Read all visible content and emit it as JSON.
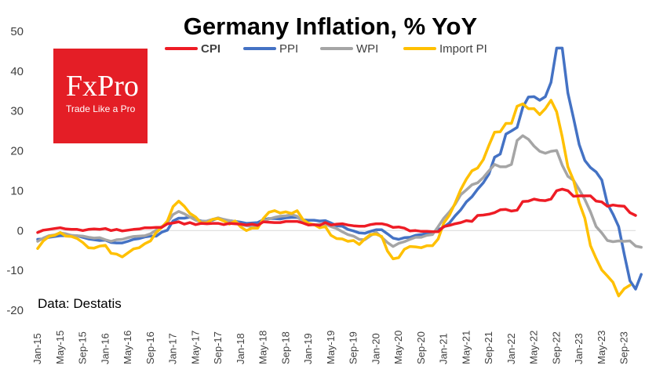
{
  "logo": {
    "brand": "FxPro",
    "tagline": "Trade Like a Pro",
    "color": "#e41e26"
  },
  "source_note": "Data: Destatis",
  "chart_data": {
    "type": "line",
    "title": "Germany Inflation, % YoY",
    "xlabel": "",
    "ylabel": "",
    "ylim": [
      -20,
      50
    ],
    "yticks": [
      -20,
      -10,
      0,
      10,
      20,
      30,
      40,
      50
    ],
    "grid": false,
    "legend_position": "top-center",
    "x_tick_labels": [
      "Jan-15",
      "May-15",
      "Sep-15",
      "Jan-16",
      "May-16",
      "Sep-16",
      "Jan-17",
      "May-17",
      "Sep-17",
      "Jan-18",
      "May-18",
      "Sep-18",
      "Jan-19",
      "May-19",
      "Sep-19",
      "Jan-20",
      "May-20",
      "Sep-20",
      "Jan-21",
      "May-21",
      "Sep-21",
      "Jan-22",
      "May-22",
      "Sep-22",
      "Jan-23",
      "May-23",
      "Sep-23"
    ],
    "series": [
      {
        "name": "CPI",
        "color": "#ee1c25",
        "values": [
          -0.5,
          0.1,
          0.3,
          0.5,
          0.7,
          0.4,
          0.3,
          0.3,
          0.0,
          0.3,
          0.4,
          0.3,
          0.5,
          0.0,
          0.3,
          -0.1,
          0.1,
          0.3,
          0.4,
          0.7,
          0.7,
          0.8,
          0.8,
          1.7,
          1.9,
          2.2,
          1.6,
          2.0,
          1.5,
          1.8,
          1.7,
          1.8,
          1.8,
          1.5,
          1.8,
          1.7,
          1.6,
          1.4,
          1.6,
          1.3,
          2.2,
          2.1,
          2.0,
          2.0,
          2.3,
          2.3,
          2.3,
          1.9,
          1.4,
          1.5,
          1.3,
          2.0,
          1.4,
          1.6,
          1.7,
          1.4,
          1.2,
          1.1,
          1.1,
          1.5,
          1.7,
          1.7,
          1.4,
          0.8,
          0.9,
          0.6,
          -0.1,
          0.0,
          -0.2,
          -0.2,
          -0.3,
          -0.3,
          1.0,
          1.3,
          1.7,
          2.0,
          2.5,
          2.3,
          3.8,
          3.9,
          4.1,
          4.5,
          5.2,
          5.3,
          4.9,
          5.1,
          7.3,
          7.4,
          7.9,
          7.6,
          7.5,
          7.9,
          10.0,
          10.4,
          10.0,
          8.6,
          8.7,
          8.7,
          8.7,
          7.4,
          7.2,
          6.1,
          6.4,
          6.2,
          6.1,
          4.5,
          3.8
        ],
        "note": "monthly Jan-15 to Oct-23"
      },
      {
        "name": "PPI",
        "color": "#4472c4",
        "values": [
          -2.2,
          -2.1,
          -1.7,
          -1.5,
          -1.3,
          -1.3,
          -1.4,
          -1.3,
          -1.7,
          -2.1,
          -2.3,
          -2.5,
          -2.4,
          -3.0,
          -3.1,
          -3.1,
          -2.7,
          -2.2,
          -2.0,
          -1.6,
          -1.4,
          -1.4,
          -0.4,
          0.1,
          2.4,
          3.1,
          3.1,
          3.4,
          2.8,
          2.4,
          2.3,
          2.6,
          3.1,
          2.7,
          2.5,
          2.3,
          2.1,
          1.8,
          1.9,
          2.0,
          2.7,
          3.0,
          3.0,
          2.9,
          3.2,
          3.3,
          3.3,
          2.7,
          2.6,
          2.6,
          2.4,
          2.5,
          1.9,
          1.2,
          1.1,
          0.3,
          -0.1,
          -0.6,
          -0.7,
          -0.2,
          0.2,
          0.2,
          -0.8,
          -1.9,
          -2.2,
          -1.8,
          -1.7,
          -1.2,
          -1.0,
          -0.7,
          -0.5,
          0.2,
          0.9,
          1.9,
          3.7,
          5.2,
          7.2,
          8.5,
          10.4,
          12.0,
          14.2,
          18.4,
          19.2,
          24.2,
          25.0,
          25.9,
          30.9,
          33.5,
          33.6,
          32.7,
          33.6,
          37.2,
          45.8,
          45.8,
          34.5,
          28.2,
          21.6,
          17.6,
          15.8,
          14.7,
          12.7,
          6.7,
          4.1,
          1.0,
          -6.0,
          -12.6,
          -14.7,
          -11.0
        ]
      },
      {
        "name": "WPI",
        "color": "#a5a5a5",
        "values": [
          -2.7,
          -1.9,
          -1.3,
          -1.1,
          -0.6,
          -0.8,
          -1.2,
          -1.3,
          -1.4,
          -1.7,
          -1.9,
          -1.8,
          -2.3,
          -2.7,
          -2.3,
          -2.2,
          -1.8,
          -1.5,
          -1.4,
          -1.3,
          -0.8,
          0.1,
          1.0,
          2.0,
          4.0,
          4.8,
          4.2,
          3.4,
          2.6,
          2.3,
          2.4,
          2.8,
          3.2,
          2.8,
          2.5,
          2.3,
          1.5,
          1.2,
          1.0,
          1.2,
          2.4,
          2.9,
          3.3,
          3.6,
          3.7,
          4.0,
          3.6,
          2.0,
          1.8,
          1.4,
          1.6,
          1.6,
          1.0,
          0.5,
          -0.3,
          -1.0,
          -1.4,
          -2.2,
          -2.3,
          -1.3,
          -0.4,
          -1.7,
          -3.0,
          -4.0,
          -3.2,
          -2.8,
          -2.2,
          -1.7,
          -1.7,
          -1.2,
          -1.0,
          1.0,
          3.1,
          4.7,
          6.6,
          9.0,
          10.2,
          11.5,
          12.0,
          13.3,
          15.0,
          16.6,
          16.0,
          16.0,
          16.6,
          22.6,
          23.8,
          22.9,
          21.2,
          19.9,
          19.4,
          19.9,
          20.1,
          16.4,
          13.6,
          12.6,
          10.3,
          7.8,
          4.7,
          1.0,
          -0.6,
          -2.5,
          -2.8,
          -2.6,
          -2.7,
          -2.6,
          -3.9,
          -4.2
        ]
      },
      {
        "name": "Import PI",
        "color": "#ffc000",
        "values": [
          -4.5,
          -2.6,
          -1.5,
          -1.2,
          -0.5,
          -1.4,
          -1.5,
          -2.0,
          -3.0,
          -4.3,
          -4.4,
          -3.9,
          -3.7,
          -5.7,
          -5.9,
          -6.6,
          -5.6,
          -4.6,
          -4.3,
          -3.3,
          -2.6,
          -0.5,
          0.8,
          2.4,
          6.0,
          7.4,
          6.1,
          4.3,
          3.4,
          1.9,
          1.9,
          2.8,
          3.0,
          2.4,
          1.6,
          2.4,
          0.9,
          0.0,
          0.6,
          0.6,
          3.0,
          4.6,
          5.0,
          4.4,
          4.7,
          4.3,
          5.0,
          2.8,
          1.8,
          1.5,
          0.7,
          1.0,
          -1.2,
          -2.0,
          -2.1,
          -2.7,
          -2.5,
          -3.5,
          -2.1,
          -1.0,
          -0.9,
          -1.5,
          -5.1,
          -7.1,
          -6.8,
          -4.7,
          -4.0,
          -4.1,
          -4.3,
          -3.8,
          -3.8,
          -2.1,
          1.9,
          3.9,
          6.9,
          10.3,
          12.9,
          15.0,
          15.7,
          17.8,
          21.4,
          24.7,
          24.8,
          26.9,
          26.9,
          31.2,
          31.8,
          30.6,
          30.6,
          29.1,
          30.6,
          32.7,
          29.8,
          23.5,
          16.0,
          12.6,
          7.0,
          3.1,
          -3.8,
          -7.0,
          -9.9,
          -11.4,
          -13.0,
          -16.4,
          -14.6,
          -13.7
        ]
      }
    ]
  }
}
